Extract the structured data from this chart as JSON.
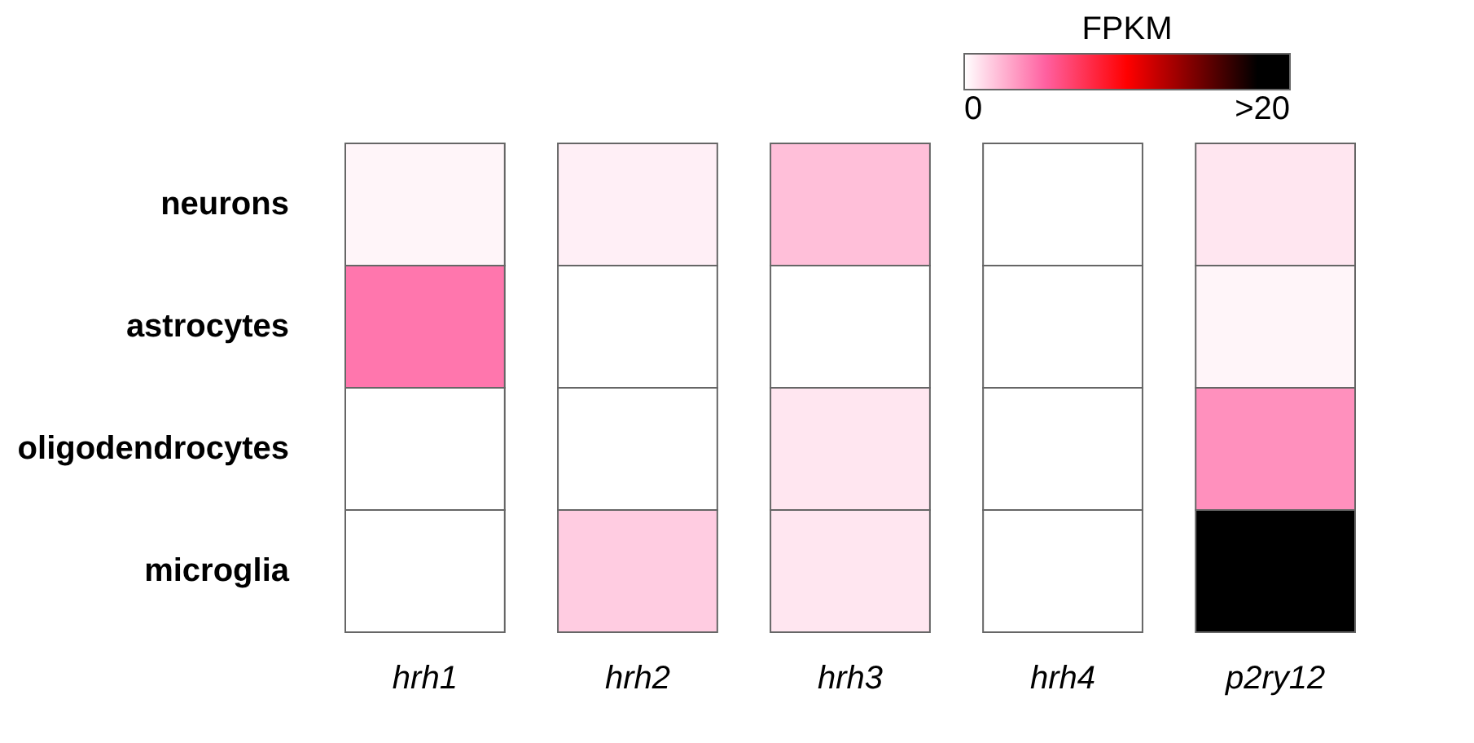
{
  "chart_data": {
    "type": "heatmap",
    "categories": [
      "hrh1",
      "hrh2",
      "hrh3",
      "hrh4",
      "p2ry12"
    ],
    "y_categories": [
      "neurons",
      "astrocytes",
      "oligodendrocytes",
      "microglia"
    ],
    "cells": [
      [
        0.3,
        0.5,
        2.0,
        0,
        0.8
      ],
      [
        4.3,
        0,
        0,
        0,
        0.3
      ],
      [
        0,
        0,
        0.8,
        0,
        3.5
      ],
      [
        0,
        1.6,
        0.8,
        0,
        20
      ]
    ],
    "clabel": "FPKM",
    "clim": [
      0,
      20
    ],
    "cticks": [
      0,
      {
        "value": 20,
        "label": ">20"
      }
    ]
  }
}
